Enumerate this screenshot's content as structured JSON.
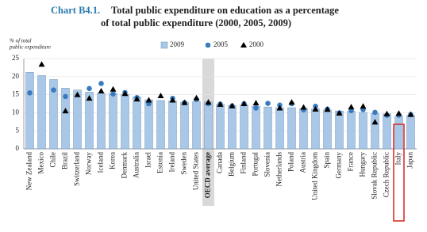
{
  "chart_data": {
    "type": "bar_marker",
    "chart_label": "Chart B4.1.",
    "title": [
      "Total public expenditure on education as a percentage",
      "of total public expenditure (2000, 2005, 2009)"
    ],
    "ylabel": [
      "% of total",
      "public expenditure"
    ],
    "categories": [
      "New Zealand",
      "Mexico",
      "Chile",
      "Brazil",
      "Switzerland",
      "Norway",
      "Iceland",
      "Korea",
      "Denmark",
      "Australia",
      "Israel",
      "Estonia",
      "Ireland",
      "Sweden",
      "United States",
      "OECD average",
      "Canada",
      "Belgium",
      "Finland",
      "Portugal",
      "Slovenia",
      "Netherlands",
      "Poland",
      "Austria",
      "United Kingdom",
      "Spain",
      "Germany",
      "France",
      "Hungary",
      "Slovak Republic",
      "Czech Republic",
      "Italy",
      "Japan"
    ],
    "series": [
      {
        "name": "2009",
        "marker": "bar",
        "color": "#a9c8e8",
        "values": [
          21.2,
          20.3,
          19.2,
          16.8,
          16.3,
          15.7,
          15.4,
          15.4,
          15.1,
          14.4,
          13.6,
          13.4,
          13.3,
          12.9,
          13.1,
          13.0,
          12.3,
          12.0,
          12.2,
          11.8,
          11.6,
          11.4,
          11.4,
          11.2,
          11.1,
          10.8,
          10.5,
          10.4,
          10.1,
          9.8,
          9.7,
          9.0,
          9.3
        ]
      },
      {
        "name": "2005",
        "marker": "circle",
        "color": "#3a7bbf",
        "values": [
          15.5,
          null,
          16.3,
          14.5,
          null,
          16.7,
          18.1,
          15.2,
          15.6,
          14.2,
          12.5,
          null,
          14.0,
          12.8,
          13.7,
          12.5,
          12.4,
          11.9,
          12.5,
          11.3,
          12.6,
          12.1,
          12.5,
          10.8,
          11.8,
          11.0,
          9.9,
          10.6,
          10.9,
          10.1,
          9.3,
          9.3,
          9.5
        ]
      },
      {
        "name": "2000",
        "marker": "triangle",
        "color": "#000000",
        "values": [
          null,
          23.4,
          null,
          10.5,
          15.0,
          14.0,
          16.0,
          16.5,
          15.3,
          13.8,
          13.5,
          14.7,
          13.5,
          12.8,
          14.1,
          12.9,
          12.3,
          11.9,
          12.5,
          12.7,
          null,
          11.3,
          12.9,
          11.5,
          11.0,
          10.9,
          9.9,
          11.6,
          11.8,
          7.4,
          9.7,
          9.8,
          9.5
        ]
      }
    ],
    "ylim": [
      0,
      25
    ],
    "yticks": [
      0,
      5,
      10,
      15,
      20,
      25
    ],
    "grid": true,
    "legend": "top",
    "shaded_category": "OECD average",
    "boxed_category": "Italy"
  }
}
